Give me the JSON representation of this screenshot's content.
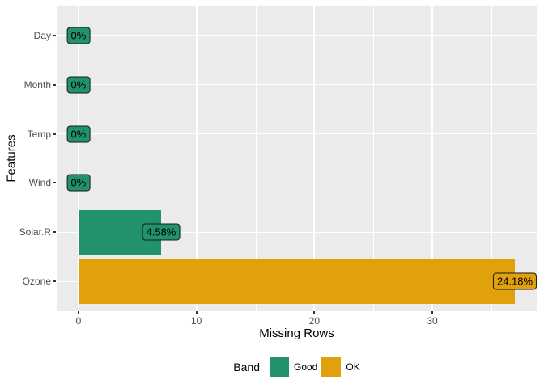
{
  "chart_data": {
    "type": "bar",
    "orientation": "horizontal",
    "title": "",
    "xlabel": "Missing Rows",
    "ylabel": "Features",
    "categories": [
      "Day",
      "Month",
      "Temp",
      "Wind",
      "Solar.R",
      "Ozone"
    ],
    "values": [
      0,
      0,
      0,
      0,
      7,
      37
    ],
    "bar_labels": [
      "0%",
      "0%",
      "0%",
      "0%",
      "4.58%",
      "24.18%"
    ],
    "bands": [
      "Good",
      "Good",
      "Good",
      "Good",
      "Good",
      "OK"
    ],
    "xlim": [
      -1.85,
      38.85
    ],
    "x_major_ticks": [
      0,
      10,
      20,
      30
    ],
    "x_minor_gridlines": [
      5,
      15,
      25,
      35
    ],
    "grid": true,
    "legend_position": "bottom"
  },
  "legend": {
    "title": "Band",
    "entries": [
      {
        "label": "Good",
        "color": "#21926B"
      },
      {
        "label": "OK",
        "color": "#E0A10C"
      }
    ]
  },
  "colors": {
    "panel_background": "#EBEBEB",
    "gridline": "#FFFFFF",
    "band_good": "#21926B",
    "band_ok": "#E0A10C",
    "axis_text": "#4D4D4D",
    "axis_title_text": "#000000",
    "label_border": "#1A1A1A"
  }
}
